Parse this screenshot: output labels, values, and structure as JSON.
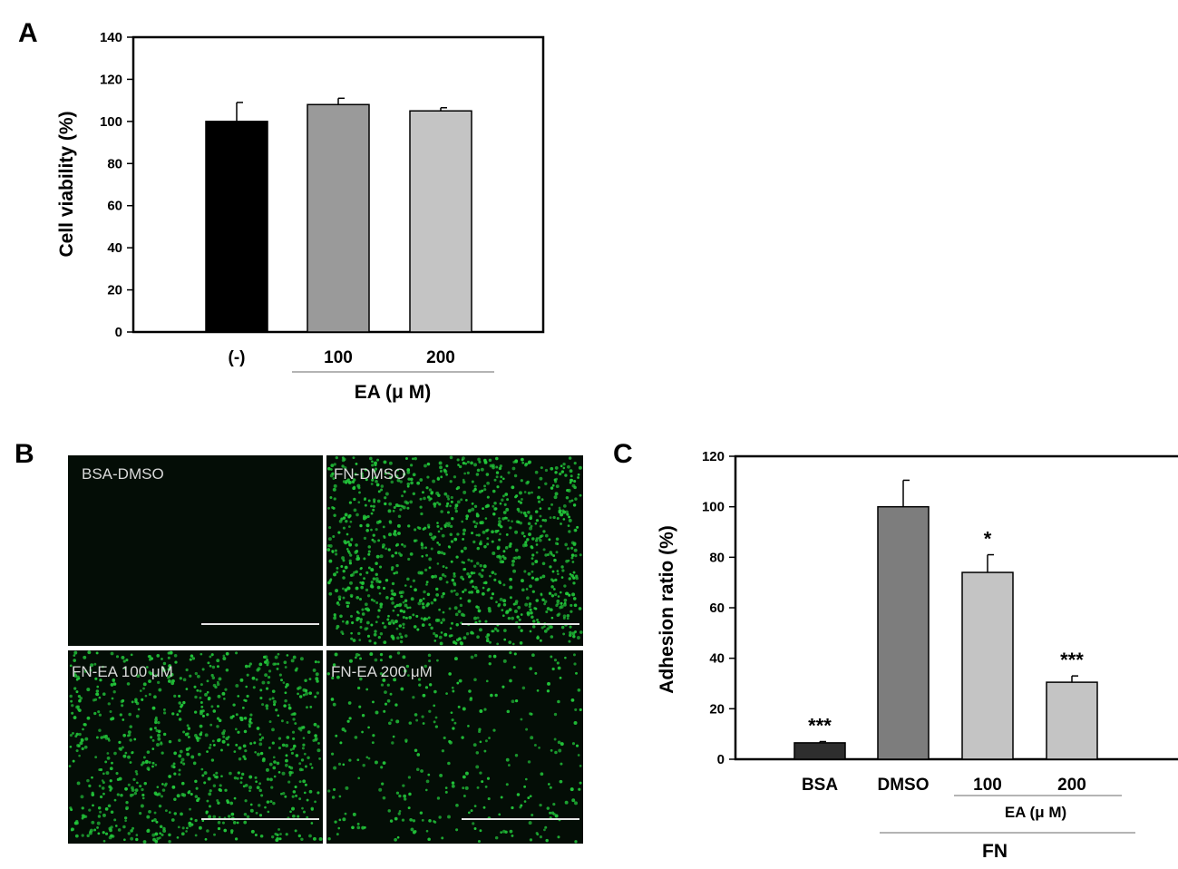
{
  "panels": {
    "A": {
      "letter": "A"
    },
    "B": {
      "letter": "B"
    },
    "C": {
      "letter": "C"
    }
  },
  "micrographs": [
    {
      "label": "BSA-DMSO",
      "cell_density": 0.0
    },
    {
      "label": "FN-DMSO",
      "cell_density": 1.0
    },
    {
      "label": "FN-EA 100 μM",
      "cell_density": 0.74
    },
    {
      "label": "FN-EA 200 μM",
      "cell_density": 0.3
    }
  ],
  "colors": {
    "micrograph_bg": "#040d06",
    "cell": "#22c53a",
    "scale_bar": "#e6e6e6"
  },
  "chart_data": [
    {
      "type": "bar",
      "panel": "A",
      "ylabel": "Cell viability (%)",
      "ylim": [
        0,
        140
      ],
      "yticks": [
        0,
        20,
        40,
        60,
        80,
        100,
        120,
        140
      ],
      "categories": [
        "(-)",
        "100",
        "200"
      ],
      "values": [
        100,
        108,
        105
      ],
      "errors": [
        9,
        3,
        1.5
      ],
      "bar_colors": [
        "#000000",
        "#9a9a9a",
        "#c4c4c4"
      ],
      "group_label": "EA (μ M)",
      "grid": false
    },
    {
      "type": "bar",
      "panel": "C",
      "ylabel": "Adhesion ratio (%)",
      "ylim": [
        0,
        120
      ],
      "yticks": [
        0,
        20,
        40,
        60,
        80,
        100,
        120
      ],
      "categories": [
        "BSA",
        "DMSO",
        "100",
        "200"
      ],
      "values": [
        6.5,
        100,
        74,
        30.5
      ],
      "errors": [
        0.5,
        10.5,
        7,
        2.5
      ],
      "significance": [
        "***",
        "",
        "*",
        "***"
      ],
      "bar_colors": [
        "#2e2e2e",
        "#7d7d7d",
        "#c4c4c4",
        "#c4c4c4"
      ],
      "group_label": "EA (μ M)",
      "outer_group_label": "FN",
      "grid": false
    }
  ]
}
